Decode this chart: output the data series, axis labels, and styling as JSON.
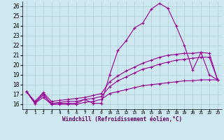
{
  "xlabel": "Windchill (Refroidissement éolien,°C)",
  "background_color": "#cde8f0",
  "line_color": "#990099",
  "grid_color": "#aacfcf",
  "x_ticks": [
    0,
    1,
    2,
    3,
    4,
    5,
    6,
    7,
    8,
    9,
    10,
    11,
    12,
    13,
    14,
    15,
    16,
    17,
    18,
    19,
    20,
    21,
    22,
    23
  ],
  "x_tick_labels": [
    "0",
    "1",
    "2",
    "3",
    "4",
    "5",
    "6",
    "7",
    "8",
    "9",
    "10",
    "11",
    "12",
    "13",
    "14",
    "15",
    "16",
    "17",
    "18",
    "19",
    "20",
    "21",
    "22",
    "23"
  ],
  "y_ticks": [
    16,
    17,
    18,
    19,
    20,
    21,
    22,
    23,
    24,
    25,
    26
  ],
  "xlim": [
    -0.5,
    23.5
  ],
  "ylim": [
    15.5,
    26.5
  ],
  "series": [
    {
      "x": [
        0,
        1,
        2,
        3,
        4,
        5,
        6,
        7,
        8,
        9,
        10,
        11,
        12,
        13,
        14,
        15,
        16,
        17,
        18,
        19,
        20,
        21,
        22,
        23
      ],
      "y": [
        17.3,
        16.1,
        17.1,
        16.0,
        16.1,
        16.1,
        16.1,
        16.5,
        16.1,
        16.1,
        19.0,
        21.5,
        22.5,
        23.8,
        24.3,
        25.7,
        26.3,
        25.8,
        24.0,
        22.0,
        19.5,
        21.3,
        19.0,
        18.5
      ]
    },
    {
      "x": [
        0,
        1,
        2,
        3,
        4,
        5,
        6,
        7,
        8,
        9,
        10,
        11,
        12,
        13,
        14,
        15,
        16,
        17,
        18,
        19,
        20,
        21,
        22,
        23
      ],
      "y": [
        17.3,
        16.3,
        17.2,
        16.3,
        16.4,
        16.5,
        16.6,
        16.7,
        16.9,
        17.1,
        18.3,
        18.9,
        19.4,
        19.8,
        20.2,
        20.5,
        20.8,
        21.0,
        21.1,
        21.2,
        21.2,
        21.3,
        21.2,
        18.5
      ]
    },
    {
      "x": [
        0,
        1,
        2,
        3,
        4,
        5,
        6,
        7,
        8,
        9,
        10,
        11,
        12,
        13,
        14,
        15,
        16,
        17,
        18,
        19,
        20,
        21,
        22,
        23
      ],
      "y": [
        17.3,
        16.2,
        16.9,
        16.1,
        16.2,
        16.3,
        16.3,
        16.5,
        16.6,
        16.8,
        17.8,
        18.4,
        18.8,
        19.2,
        19.6,
        19.8,
        20.1,
        20.3,
        20.5,
        20.6,
        20.7,
        20.8,
        20.8,
        18.5
      ]
    },
    {
      "x": [
        0,
        1,
        2,
        3,
        4,
        5,
        6,
        7,
        8,
        9,
        10,
        11,
        12,
        13,
        14,
        15,
        16,
        17,
        18,
        19,
        20,
        21,
        22,
        23
      ],
      "y": [
        17.3,
        16.1,
        16.7,
        16.0,
        16.0,
        16.0,
        16.0,
        16.2,
        16.3,
        16.5,
        17.1,
        17.3,
        17.5,
        17.7,
        17.9,
        18.0,
        18.1,
        18.2,
        18.3,
        18.4,
        18.4,
        18.5,
        18.5,
        18.5
      ]
    }
  ]
}
